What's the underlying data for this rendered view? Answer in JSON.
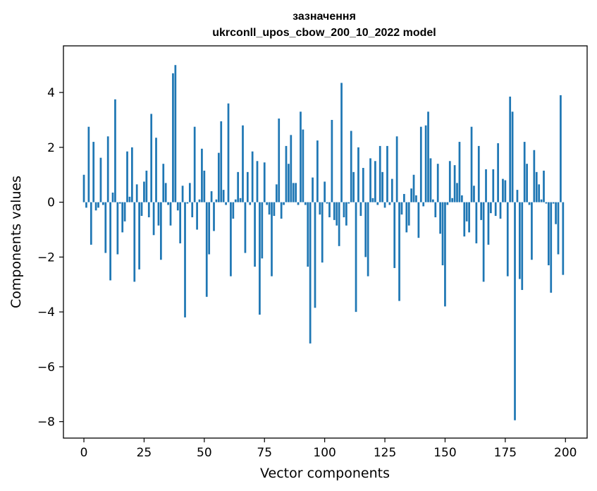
{
  "chart_data": {
    "type": "bar",
    "title": "зазначення",
    "subtitle": "ukrconll_upos_cbow_200_10_2022 model",
    "xlabel": "Vector components",
    "ylabel": "Components values",
    "xlim": [
      -8.5,
      209
    ],
    "ylim": [
      -8.6,
      5.7
    ],
    "xticks": [
      0,
      25,
      50,
      75,
      100,
      125,
      150,
      175,
      200
    ],
    "xtick_labels": [
      "0",
      "25",
      "50",
      "75",
      "100",
      "125",
      "150",
      "175",
      "200"
    ],
    "yticks": [
      -8,
      -6,
      -4,
      -2,
      0,
      2,
      4
    ],
    "ytick_labels": [
      "−8",
      "−6",
      "−4",
      "−2",
      "0",
      "2",
      "4"
    ],
    "grid": false,
    "legend": "none",
    "bar_color": "#1f77b4",
    "x": [
      0,
      1,
      2,
      3,
      4,
      5,
      6,
      7,
      8,
      9,
      10,
      11,
      12,
      13,
      14,
      15,
      16,
      17,
      18,
      19,
      20,
      21,
      22,
      23,
      24,
      25,
      26,
      27,
      28,
      29,
      30,
      31,
      32,
      33,
      34,
      35,
      36,
      37,
      38,
      39,
      40,
      41,
      42,
      43,
      44,
      45,
      46,
      47,
      48,
      49,
      50,
      51,
      52,
      53,
      54,
      55,
      56,
      57,
      58,
      59,
      60,
      61,
      62,
      63,
      64,
      65,
      66,
      67,
      68,
      69,
      70,
      71,
      72,
      73,
      74,
      75,
      76,
      77,
      78,
      79,
      80,
      81,
      82,
      83,
      84,
      85,
      86,
      87,
      88,
      89,
      90,
      91,
      92,
      93,
      94,
      95,
      96,
      97,
      98,
      99,
      100,
      101,
      102,
      103,
      104,
      105,
      106,
      107,
      108,
      109,
      110,
      111,
      112,
      113,
      114,
      115,
      116,
      117,
      118,
      119,
      120,
      121,
      122,
      123,
      124,
      125,
      126,
      127,
      128,
      129,
      130,
      131,
      132,
      133,
      134,
      135,
      136,
      137,
      138,
      139,
      140,
      141,
      142,
      143,
      144,
      145,
      146,
      147,
      148,
      149,
      150,
      151,
      152,
      153,
      154,
      155,
      156,
      157,
      158,
      159,
      160,
      161,
      162,
      163,
      164,
      165,
      166,
      167,
      168,
      169,
      170,
      171,
      172,
      173,
      174,
      175,
      176,
      177,
      178,
      179,
      180,
      181,
      182,
      183,
      184,
      185,
      186,
      187,
      188,
      189,
      190,
      191,
      192,
      193,
      194,
      195,
      196,
      197,
      198,
      199
    ],
    "values": [
      1.0,
      -0.2,
      2.75,
      -1.55,
      2.2,
      -0.3,
      -0.2,
      1.62,
      -0.1,
      -1.85,
      2.4,
      -2.85,
      0.35,
      3.75,
      -1.9,
      -0.05,
      -1.1,
      -0.7,
      1.85,
      0.2,
      2.0,
      -2.9,
      0.65,
      -2.45,
      -0.5,
      0.75,
      1.15,
      -0.55,
      3.22,
      -1.2,
      2.35,
      -0.85,
      -2.1,
      1.4,
      0.7,
      -0.1,
      -0.85,
      4.7,
      5.0,
      -0.3,
      -1.5,
      0.6,
      -4.2,
      -0.05,
      0.7,
      -0.55,
      2.75,
      -1.0,
      0.1,
      1.95,
      1.15,
      -3.45,
      -1.9,
      0.4,
      -1.05,
      0.1,
      1.8,
      2.95,
      0.45,
      -0.1,
      3.6,
      -2.7,
      -0.6,
      0.1,
      1.1,
      0.15,
      2.8,
      -1.85,
      1.1,
      -0.1,
      1.85,
      -2.35,
      1.5,
      -4.1,
      -2.05,
      1.45,
      -0.1,
      -0.45,
      -2.7,
      -0.5,
      0.65,
      3.05,
      -0.6,
      -0.1,
      2.05,
      1.4,
      2.45,
      0.7,
      0.7,
      -0.1,
      3.3,
      2.65,
      -0.1,
      -2.35,
      -5.15,
      0.9,
      -3.85,
      2.25,
      -0.45,
      -2.2,
      0.75,
      -0.05,
      -0.55,
      3.0,
      -0.65,
      -0.85,
      -1.6,
      4.35,
      -0.55,
      -0.85,
      -0.05,
      2.6,
      1.1,
      -4.0,
      2.0,
      -0.5,
      1.25,
      -2.0,
      -2.7,
      1.6,
      0.15,
      1.5,
      -0.1,
      2.05,
      1.1,
      -0.2,
      2.05,
      -0.1,
      0.85,
      -2.4,
      2.4,
      -3.6,
      -0.45,
      0.3,
      -1.1,
      -0.85,
      0.5,
      1.0,
      0.25,
      -1.3,
      2.75,
      -0.15,
      2.8,
      3.3,
      1.6,
      0.1,
      -0.55,
      1.4,
      -1.15,
      -2.3,
      -3.8,
      -0.1,
      1.5,
      0.15,
      1.35,
      0.7,
      2.2,
      0.25,
      -1.25,
      -0.7,
      -1.1,
      2.75,
      0.6,
      -1.5,
      2.05,
      -0.65,
      -2.9,
      1.2,
      -1.55,
      -0.4,
      1.2,
      -0.5,
      2.15,
      -0.6,
      0.85,
      0.8,
      -2.7,
      3.85,
      3.3,
      -7.95,
      0.45,
      -2.8,
      -3.2,
      2.2,
      1.4,
      -0.1,
      -2.1,
      1.9,
      1.1,
      0.65,
      0.1,
      1.15,
      -0.05,
      -2.3,
      -3.3,
      -0.05,
      -0.8,
      -1.9,
      3.9,
      -2.65
    ]
  }
}
